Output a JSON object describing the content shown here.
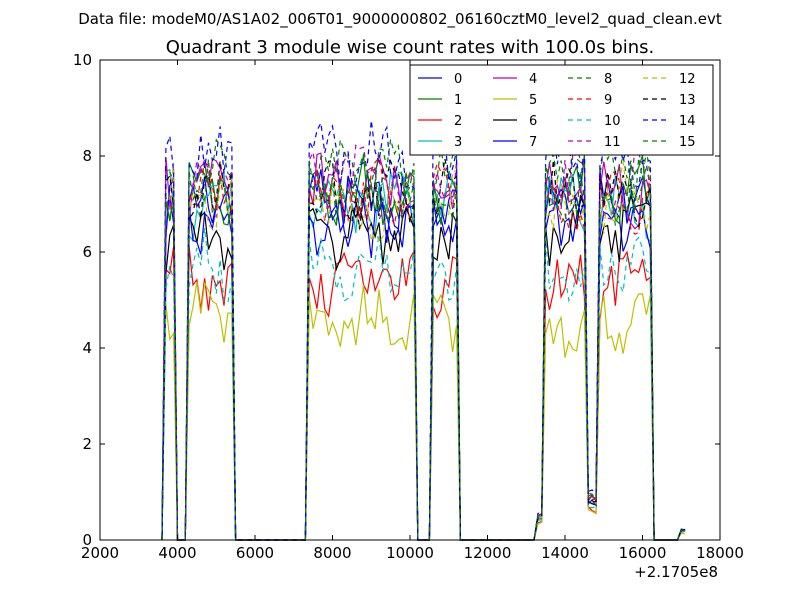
{
  "figure": {
    "suptitle": "Data file: modeM0/AS1A02_006T01_9000000802_06160cztM0_level2_quad_clean.evt"
  },
  "chart_data": {
    "type": "line",
    "title": "Quadrant 3 module wise count rates with 100.0s bins.",
    "xlabel": "",
    "ylabel": "",
    "xlim": [
      2000,
      18000
    ],
    "ylim": [
      0,
      10
    ],
    "x_ticks": [
      2000,
      4000,
      6000,
      8000,
      10000,
      12000,
      14000,
      16000,
      18000
    ],
    "y_ticks": [
      0,
      2,
      4,
      6,
      8,
      10
    ],
    "x_tick_labels": [
      "2000",
      "4000",
      "6000",
      "8000",
      "10000",
      "12000",
      "14000",
      "16000",
      "18000"
    ],
    "y_tick_labels": [
      "0",
      "2",
      "4",
      "6",
      "8",
      "10"
    ],
    "x_offset_label": "+2.1705e8",
    "grid": false,
    "legend_position": "top-right",
    "x_bins": [
      3600,
      3700,
      3800,
      3900,
      4000,
      4100,
      4200,
      4300,
      4400,
      4500,
      4600,
      4700,
      4800,
      4900,
      5000,
      5100,
      5200,
      5300,
      5400,
      5500,
      5600,
      5700,
      5800,
      5900,
      6000,
      6100,
      6200,
      6300,
      6400,
      6500,
      6600,
      6700,
      6800,
      6900,
      7000,
      7100,
      7200,
      7300,
      7400,
      7500,
      7600,
      7700,
      7800,
      7900,
      8000,
      8100,
      8200,
      8300,
      8400,
      8500,
      8600,
      8700,
      8800,
      8900,
      9000,
      9100,
      9200,
      9300,
      9400,
      9500,
      9600,
      9700,
      9800,
      9900,
      10000,
      10100,
      10200,
      10300,
      10400,
      10500,
      10600,
      10700,
      10800,
      10900,
      11000,
      11100,
      11200,
      11300,
      11400,
      11500,
      11600,
      11700,
      11800,
      11900,
      12000,
      12100,
      12200,
      12300,
      12400,
      12500,
      12600,
      12700,
      12800,
      12900,
      13000,
      13100,
      13200,
      13300,
      13400,
      13500,
      13600,
      13700,
      13800,
      13900,
      14000,
      14100,
      14200,
      14300,
      14400,
      14500,
      14600,
      14700,
      14800,
      14900,
      15000,
      15100,
      15200,
      15300,
      15400,
      15500,
      15600,
      15700,
      15800,
      15900,
      16000,
      16100,
      16200,
      16300,
      16400,
      16500,
      16600,
      16700,
      16800,
      16900,
      17000,
      17100
    ],
    "series": [
      {
        "name": "0",
        "color": "#0000ff",
        "dashed": false,
        "level": 6.9
      },
      {
        "name": "1",
        "color": "#008000",
        "dashed": false,
        "level": 7.2
      },
      {
        "name": "2",
        "color": "#ff0000",
        "dashed": false,
        "level": 5.4
      },
      {
        "name": "3",
        "color": "#00bfbf",
        "dashed": false,
        "level": 7.0
      },
      {
        "name": "4",
        "color": "#bf00bf",
        "dashed": false,
        "level": 7.3
      },
      {
        "name": "5",
        "color": "#bfbf00",
        "dashed": false,
        "level": 4.6
      },
      {
        "name": "6",
        "color": "#000000",
        "dashed": false,
        "level": 6.4
      },
      {
        "name": "7",
        "color": "#0000ff",
        "dashed": false,
        "level": 6.7
      },
      {
        "name": "8",
        "color": "#008000",
        "dashed": true,
        "level": 7.6
      },
      {
        "name": "9",
        "color": "#ff0000",
        "dashed": true,
        "level": 7.1
      },
      {
        "name": "10",
        "color": "#00bfbf",
        "dashed": true,
        "level": 5.7
      },
      {
        "name": "11",
        "color": "#bf00bf",
        "dashed": true,
        "level": 7.5
      },
      {
        "name": "12",
        "color": "#bfbf00",
        "dashed": true,
        "level": 7.0
      },
      {
        "name": "13",
        "color": "#000000",
        "dashed": true,
        "level": 7.1
      },
      {
        "name": "14",
        "color": "#0000ff",
        "dashed": true,
        "level": 8.0
      },
      {
        "name": "15",
        "color": "#008000",
        "dashed": true,
        "level": 7.3
      }
    ],
    "active_intervals": [
      [
        3700,
        3900
      ],
      [
        4300,
        5400
      ],
      [
        7400,
        10100
      ],
      [
        10600,
        11200
      ],
      [
        13300,
        13500
      ],
      [
        13500,
        14600
      ],
      [
        14600,
        14900
      ],
      [
        14900,
        16200
      ],
      [
        17000,
        17100
      ]
    ],
    "interval_scales": [
      1.0,
      1.0,
      1.0,
      1.0,
      0.07,
      1.0,
      0.12,
      1.0,
      0.03
    ]
  }
}
